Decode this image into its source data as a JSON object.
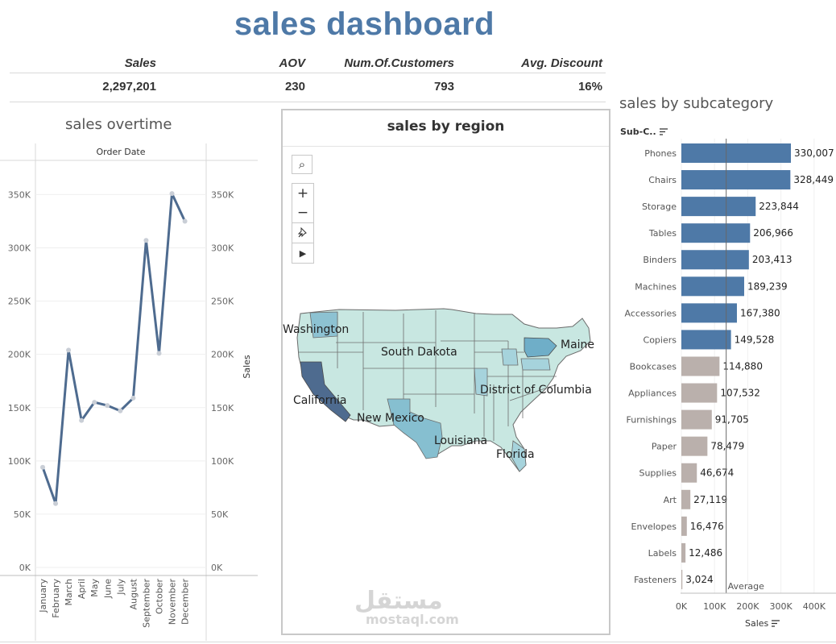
{
  "dashboard": {
    "title": "sales dashboard"
  },
  "kpis": [
    {
      "label": "Sales",
      "value": "2,297,201"
    },
    {
      "label": "AOV",
      "value": "230"
    },
    {
      "label": "Num.Of.Customers",
      "value": "793"
    },
    {
      "label": "Avg. Discount",
      "value": "16%"
    }
  ],
  "overtime": {
    "title": "sales overtime",
    "header": "Order Date",
    "right_axis_label": "Sales"
  },
  "region": {
    "title": "sales by region",
    "labels": [
      "Washington",
      "South Dakota",
      "Maine",
      "California",
      "District of Columbia",
      "New Mexico",
      "Louisiana",
      "Florida"
    ],
    "controls": [
      "search-icon",
      "zoom-in-icon",
      "zoom-out-icon",
      "pin-icon",
      "play-icon"
    ]
  },
  "subcategory": {
    "title": "sales by subcategory",
    "column_header": "Sub-C..",
    "x_title": "Sales",
    "ref_label": "Average"
  },
  "watermark": {
    "arabic": "مستقل",
    "latin": "mostaql.com"
  },
  "chart_data": [
    {
      "type": "line",
      "title": "sales overtime",
      "xlabel": "Order Date",
      "ylabel": "Sales",
      "x": [
        "January",
        "February",
        "March",
        "April",
        "May",
        "June",
        "July",
        "August",
        "September",
        "October",
        "November",
        "December"
      ],
      "series": [
        {
          "values": [
            94000,
            60000,
            204000,
            138000,
            155000,
            152000,
            147000,
            159000,
            307000,
            201000,
            351000,
            325000
          ]
        }
      ],
      "ylim": [
        0,
        370000
      ],
      "ticks": [
        "0K",
        "50K",
        "100K",
        "150K",
        "200K",
        "250K",
        "300K",
        "350K"
      ],
      "color": "#4e6b8f"
    },
    {
      "type": "bar",
      "title": "sales by subcategory",
      "orientation": "horizontal",
      "xlabel": "Sales",
      "categories": [
        "Phones",
        "Chairs",
        "Storage",
        "Tables",
        "Binders",
        "Machines",
        "Accessories",
        "Copiers",
        "Bookcases",
        "Appliances",
        "Furnishings",
        "Paper",
        "Supplies",
        "Art",
        "Envelopes",
        "Labels",
        "Fasteners"
      ],
      "values": [
        330007,
        328449,
        223844,
        206966,
        203413,
        189239,
        167380,
        149528,
        114880,
        107532,
        91705,
        78479,
        46674,
        27119,
        16476,
        12486,
        3024
      ],
      "labels": [
        "330,007",
        "328,449",
        "223,844",
        "206,966",
        "203,413",
        "189,239",
        "167,380",
        "149,528",
        "114,880",
        "107,532",
        "91,705",
        "78,479",
        "46,674",
        "27,119",
        "16,476",
        "12,486",
        "3,024"
      ],
      "above_avg_color": "#4e79a7",
      "below_avg_color": "#bab0ac",
      "average": 135112,
      "xlim": [
        0,
        440000
      ],
      "ticks": [
        "0K",
        "100K",
        "200K",
        "300K",
        "400K"
      ]
    }
  ]
}
